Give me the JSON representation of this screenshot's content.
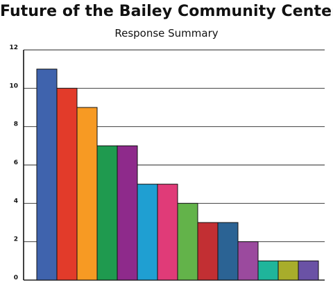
{
  "chart_data": {
    "type": "bar",
    "title": "Future of the Bailey Community Center",
    "subtitle": "Response Summary",
    "values": [
      11,
      10,
      9,
      7,
      7,
      5,
      5,
      4,
      3,
      3,
      2,
      1,
      1,
      1
    ],
    "colors": [
      "#3f63ad",
      "#e23b2a",
      "#f79a23",
      "#1f9a4f",
      "#8e2a8b",
      "#1f9fd2",
      "#e03b78",
      "#63b34a",
      "#c22f33",
      "#2b6394",
      "#9b4a9e",
      "#1fb59b",
      "#a8ad2b",
      "#6a52a5"
    ],
    "ylim": [
      0,
      12
    ],
    "yticks": [
      "0",
      "2",
      "4",
      "6",
      "8",
      "10",
      "12"
    ],
    "grid": true,
    "legend": "none"
  }
}
